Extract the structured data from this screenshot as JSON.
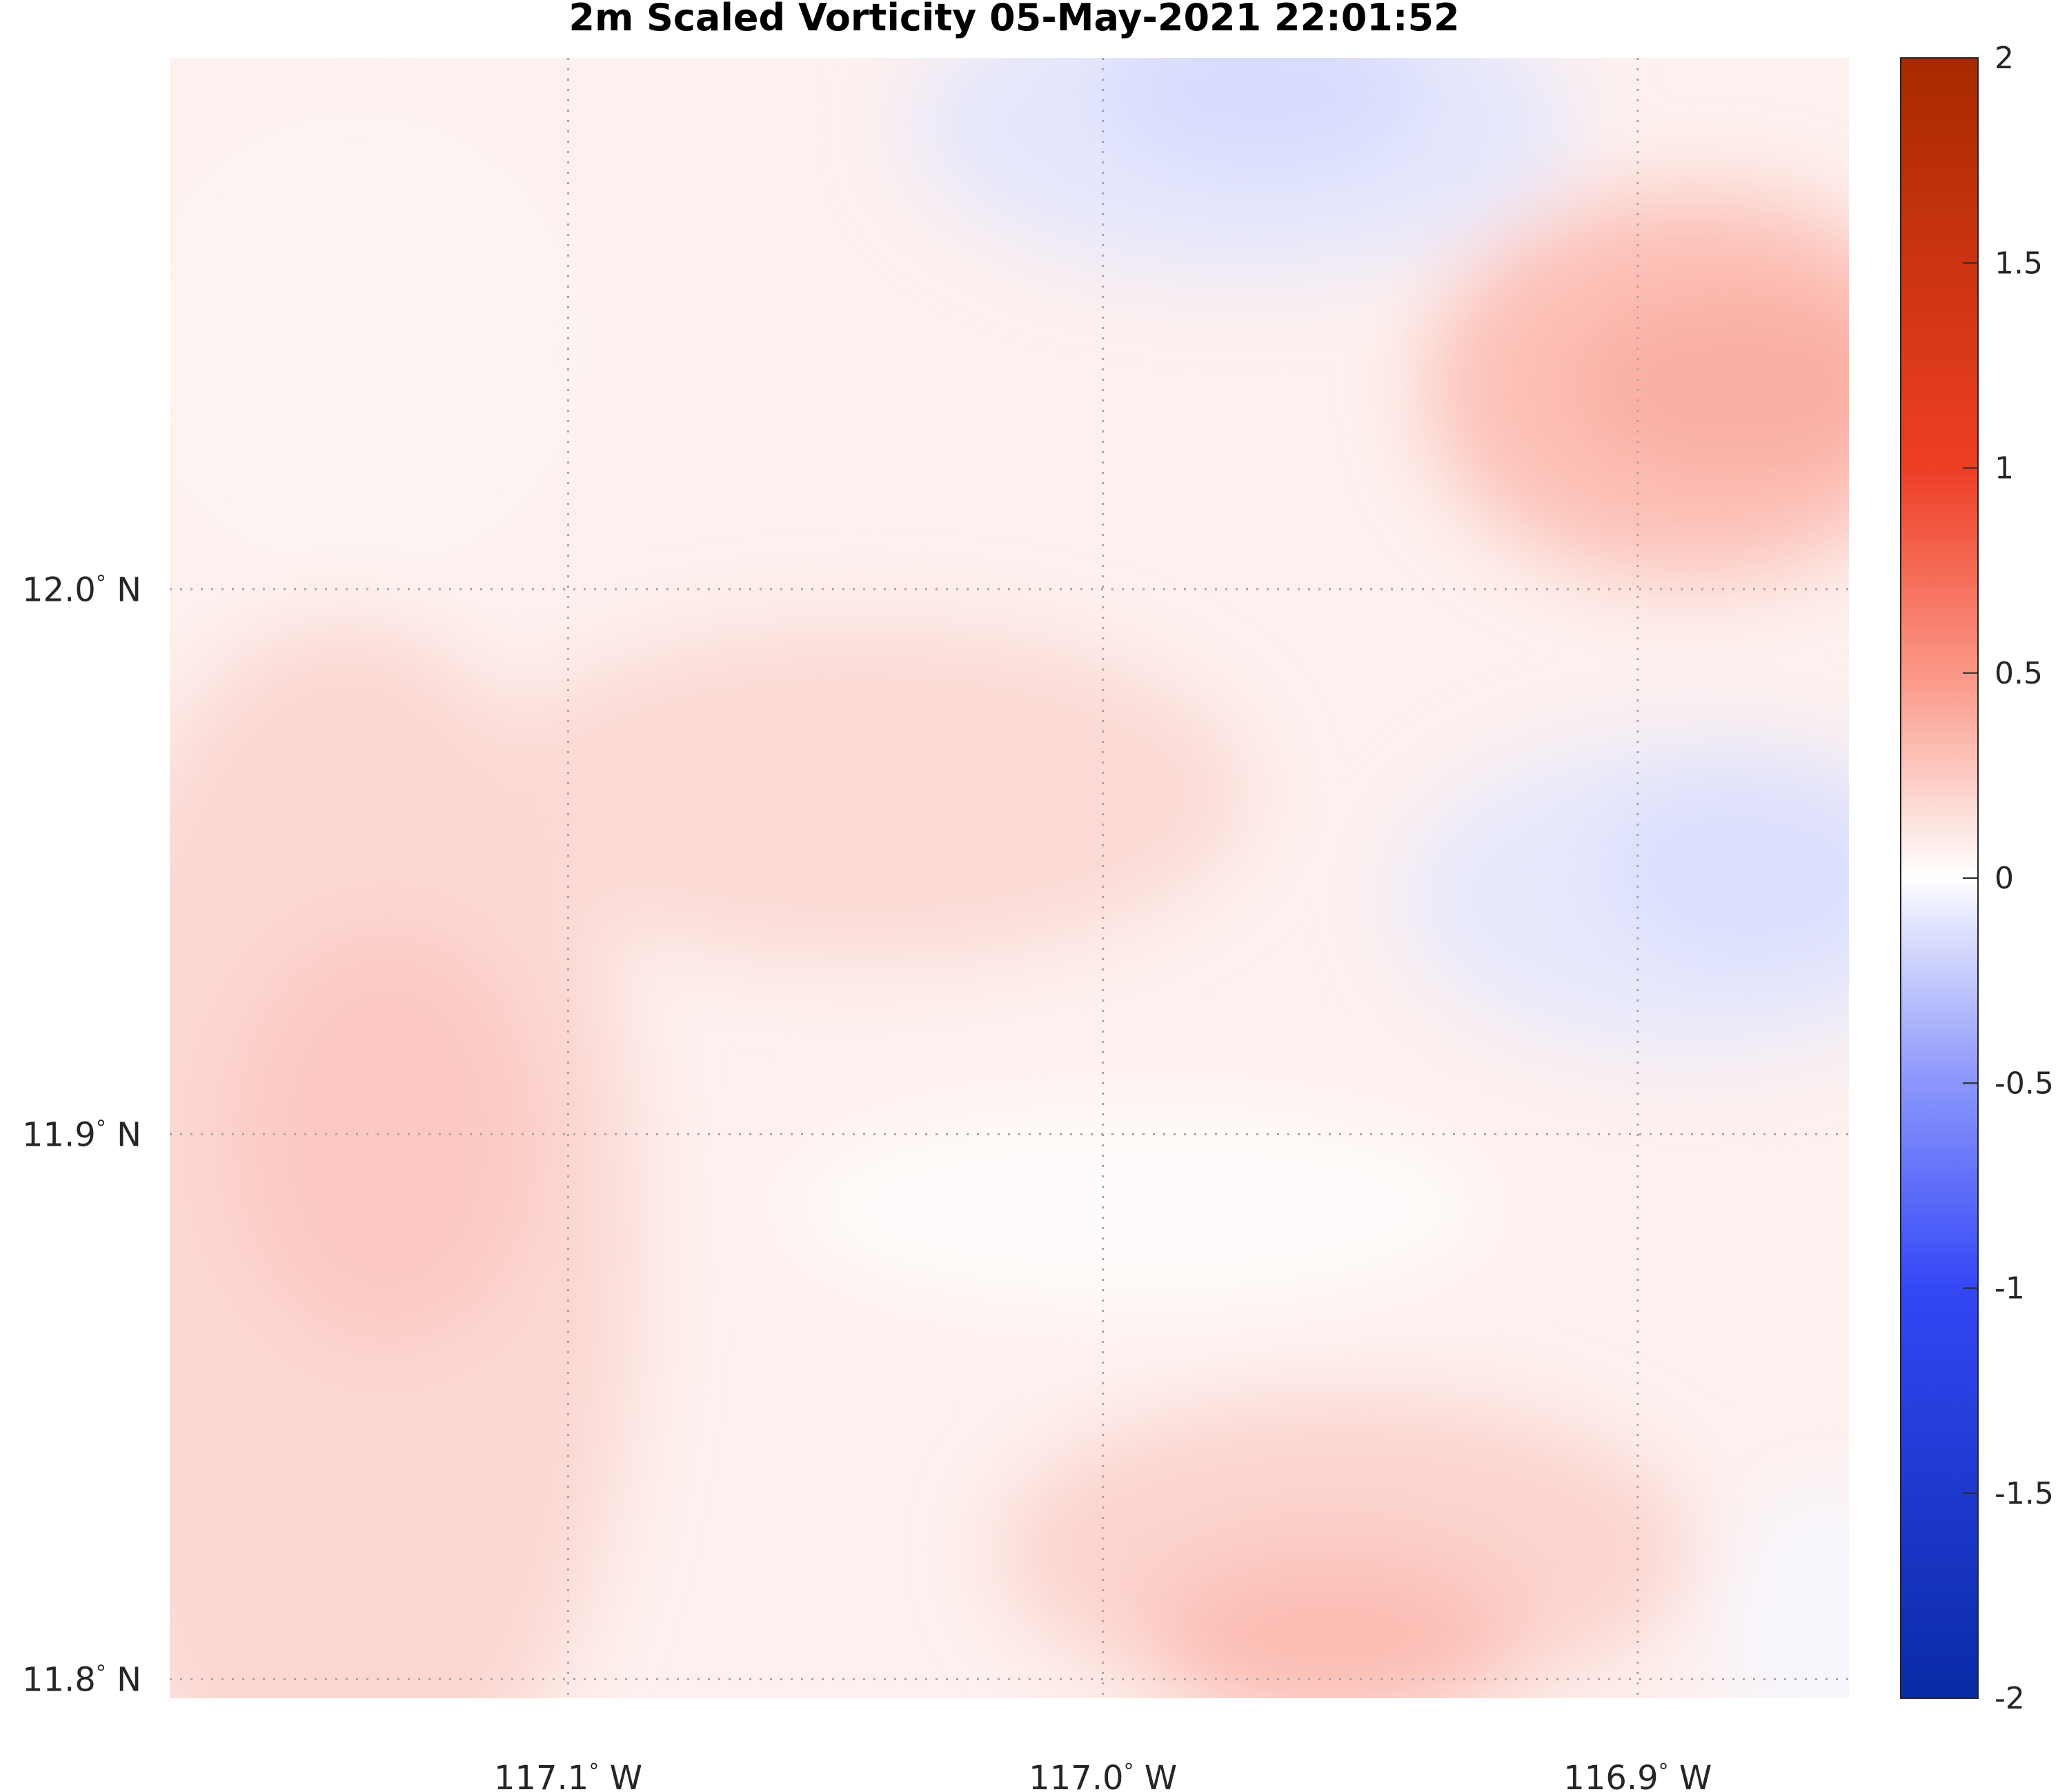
{
  "chart_data": {
    "type": "heatmap",
    "title": "2m Scaled Vorticity  05-May-2021 22:01:52",
    "x_ticks": [
      {
        "value": -117.1,
        "label": "117.1",
        "deg": "°",
        "hemi": "W"
      },
      {
        "value": -117.0,
        "label": "117.0",
        "deg": "°",
        "hemi": "W"
      },
      {
        "value": -116.9,
        "label": "116.9",
        "deg": "°",
        "hemi": "W"
      }
    ],
    "y_ticks": [
      {
        "value": 12.0,
        "label": "12.0",
        "deg": "°",
        "hemi": "N"
      },
      {
        "value": 11.9,
        "label": "11.9",
        "deg": "°",
        "hemi": "N"
      },
      {
        "value": 11.8,
        "label": "11.8",
        "deg": "°",
        "hemi": "N"
      }
    ],
    "xlim": [
      -117.1745,
      -116.8605
    ],
    "ylim": [
      11.7965,
      12.0975
    ],
    "grid": true,
    "grid_style": "dotted",
    "colorbar": {
      "position": "right",
      "range": [
        -2,
        2
      ],
      "ticks": [
        {
          "value": 2,
          "label": "2"
        },
        {
          "value": 1.5,
          "label": "1.5"
        },
        {
          "value": 1,
          "label": "1"
        },
        {
          "value": 0.5,
          "label": "0.5"
        },
        {
          "value": 0,
          "label": "0"
        },
        {
          "value": -0.5,
          "label": "-0.5"
        },
        {
          "value": -1,
          "label": "-1"
        },
        {
          "value": -1.5,
          "label": "-1.5"
        },
        {
          "value": -2,
          "label": "-2"
        }
      ],
      "colormap": "blue-white-red diverging",
      "levels": 40
    },
    "field_estimate": [
      {
        "region": "west / southwest strip",
        "value": 0.3
      },
      {
        "region": "northeast maximum near 116.87W 12.06N",
        "value": 0.45
      },
      {
        "region": "south-central maximum near 116.96W 11.81N",
        "value": 0.38
      },
      {
        "region": "north-central minimum near 116.97W 12.09N",
        "value": -0.1
      },
      {
        "region": "east minimum near 116.87W 11.95N",
        "value": -0.08
      },
      {
        "region": "central band near 117.05W 11.88N",
        "value": 0.05
      }
    ]
  }
}
